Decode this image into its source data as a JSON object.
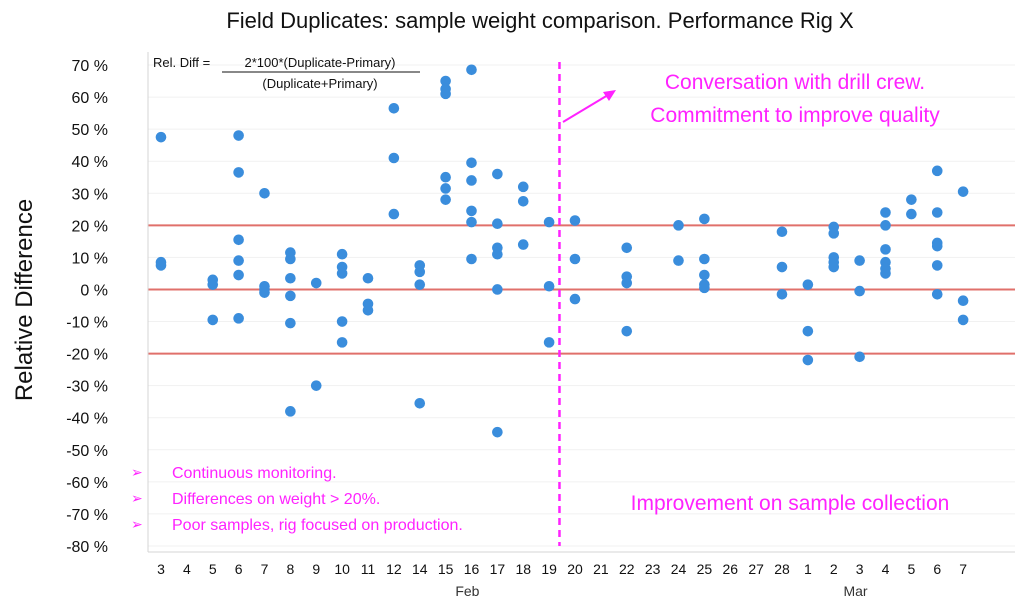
{
  "chart_data": {
    "type": "scatter",
    "title": "Field Duplicates: sample weight comparison. Performance Rig X",
    "ylabel": "Relative Difference",
    "xlabel": "",
    "ylim": [
      -80,
      70
    ],
    "yticks": [
      "70 %",
      "60 %",
      "50 %",
      "40 %",
      "30 %",
      "20 %",
      "10 %",
      "0 %",
      "-10 %",
      "-20 %",
      "-30 %",
      "-40 %",
      "-50 %",
      "-60 %",
      "-70 %",
      "-80 %"
    ],
    "ytick_values": [
      70,
      60,
      50,
      40,
      30,
      20,
      10,
      0,
      -10,
      -20,
      -30,
      -40,
      -50,
      -60,
      -70,
      -80
    ],
    "categories": [
      "3",
      "4",
      "5",
      "6",
      "7",
      "8",
      "9",
      "10",
      "11",
      "12",
      "14",
      "15",
      "16",
      "17",
      "18",
      "19",
      "20",
      "21",
      "22",
      "23",
      "24",
      "25",
      "26",
      "27",
      "28",
      "1",
      "2",
      "3",
      "4",
      "5",
      "6",
      "7"
    ],
    "months": [
      {
        "label": "Feb",
        "category_index": 13
      },
      {
        "label": "Mar",
        "category_index": 28
      }
    ],
    "reference_lines": [
      20,
      0,
      -20
    ],
    "reference_line_color": "#e0706b",
    "point_color": "#3a8ddc",
    "divider_category_index": 15.4,
    "divider_color": "#ff22ff",
    "series": [
      {
        "name": "Relative Difference",
        "points": [
          [
            0,
            47.5
          ],
          [
            0,
            8.5
          ],
          [
            0,
            7.5
          ],
          [
            2,
            3
          ],
          [
            2,
            1.5
          ],
          [
            2,
            -9.5
          ],
          [
            3,
            48
          ],
          [
            3,
            36.5
          ],
          [
            3,
            15.5
          ],
          [
            3,
            9
          ],
          [
            3,
            4.5
          ],
          [
            3,
            -9
          ],
          [
            4,
            30
          ],
          [
            4,
            1
          ],
          [
            4,
            0
          ],
          [
            4,
            -1
          ],
          [
            5,
            11.5
          ],
          [
            5,
            9.5
          ],
          [
            5,
            3.5
          ],
          [
            5,
            -2
          ],
          [
            5,
            -10.5
          ],
          [
            5,
            -38
          ],
          [
            6,
            2
          ],
          [
            6,
            -30
          ],
          [
            7,
            11
          ],
          [
            7,
            7
          ],
          [
            7,
            5
          ],
          [
            7,
            -10
          ],
          [
            7,
            -16.5
          ],
          [
            8,
            3.5
          ],
          [
            8,
            -4.5
          ],
          [
            8,
            -6.5
          ],
          [
            9,
            56.5
          ],
          [
            9,
            41
          ],
          [
            9,
            23.5
          ],
          [
            10,
            7.5
          ],
          [
            10,
            5.5
          ],
          [
            10,
            1.5
          ],
          [
            10,
            -35.5
          ],
          [
            11,
            65
          ],
          [
            11,
            62.5
          ],
          [
            11,
            61
          ],
          [
            11,
            35
          ],
          [
            11,
            31.5
          ],
          [
            11,
            28
          ],
          [
            12,
            68.5
          ],
          [
            12,
            39.5
          ],
          [
            12,
            34
          ],
          [
            12,
            24.5
          ],
          [
            12,
            21
          ],
          [
            12,
            9.5
          ],
          [
            13,
            36
          ],
          [
            13,
            20.5
          ],
          [
            13,
            13
          ],
          [
            13,
            11
          ],
          [
            13,
            0
          ],
          [
            13,
            -44.5
          ],
          [
            14,
            32
          ],
          [
            14,
            27.5
          ],
          [
            14,
            14
          ],
          [
            15,
            21
          ],
          [
            15,
            1
          ],
          [
            15,
            -16.5
          ],
          [
            16,
            21.5
          ],
          [
            16,
            9.5
          ],
          [
            16,
            -3
          ],
          [
            18,
            13
          ],
          [
            18,
            4
          ],
          [
            18,
            2
          ],
          [
            18,
            -13
          ],
          [
            20,
            20
          ],
          [
            20,
            9
          ],
          [
            21,
            22
          ],
          [
            21,
            9.5
          ],
          [
            21,
            4.5
          ],
          [
            21,
            1.5
          ],
          [
            21,
            0.5
          ],
          [
            24,
            18
          ],
          [
            24,
            7
          ],
          [
            24,
            -1.5
          ],
          [
            25,
            1.5
          ],
          [
            25,
            -13
          ],
          [
            25,
            -22
          ],
          [
            26,
            19.5
          ],
          [
            26,
            17.5
          ],
          [
            26,
            10
          ],
          [
            26,
            8.5
          ],
          [
            26,
            7
          ],
          [
            27,
            9
          ],
          [
            27,
            -0.5
          ],
          [
            27,
            -21
          ],
          [
            28,
            24
          ],
          [
            28,
            20
          ],
          [
            28,
            12.5
          ],
          [
            28,
            8.5
          ],
          [
            28,
            6.5
          ],
          [
            28,
            5
          ],
          [
            29,
            28
          ],
          [
            29,
            23.5
          ],
          [
            30,
            37
          ],
          [
            30,
            24
          ],
          [
            30,
            14.5
          ],
          [
            30,
            13.5
          ],
          [
            30,
            7.5
          ],
          [
            30,
            -1.5
          ],
          [
            31,
            30.5
          ],
          [
            31,
            -3.5
          ],
          [
            31,
            -9.5
          ]
        ]
      }
    ]
  },
  "formula": {
    "prefix": "Rel. Diff = ",
    "numerator": "2*100*(Duplicate-Primary)",
    "denominator": "(Duplicate+Primary)"
  },
  "annotations": {
    "conversation_line1": "Conversation with drill crew.",
    "conversation_line2": "Commitment to improve quality",
    "improvement": "Improvement on sample collection",
    "bullet_mark": "➢",
    "bullets": [
      "Continuous monitoring.",
      "Differences on weight > 20%.",
      "Poor samples, rig focused on production."
    ]
  }
}
